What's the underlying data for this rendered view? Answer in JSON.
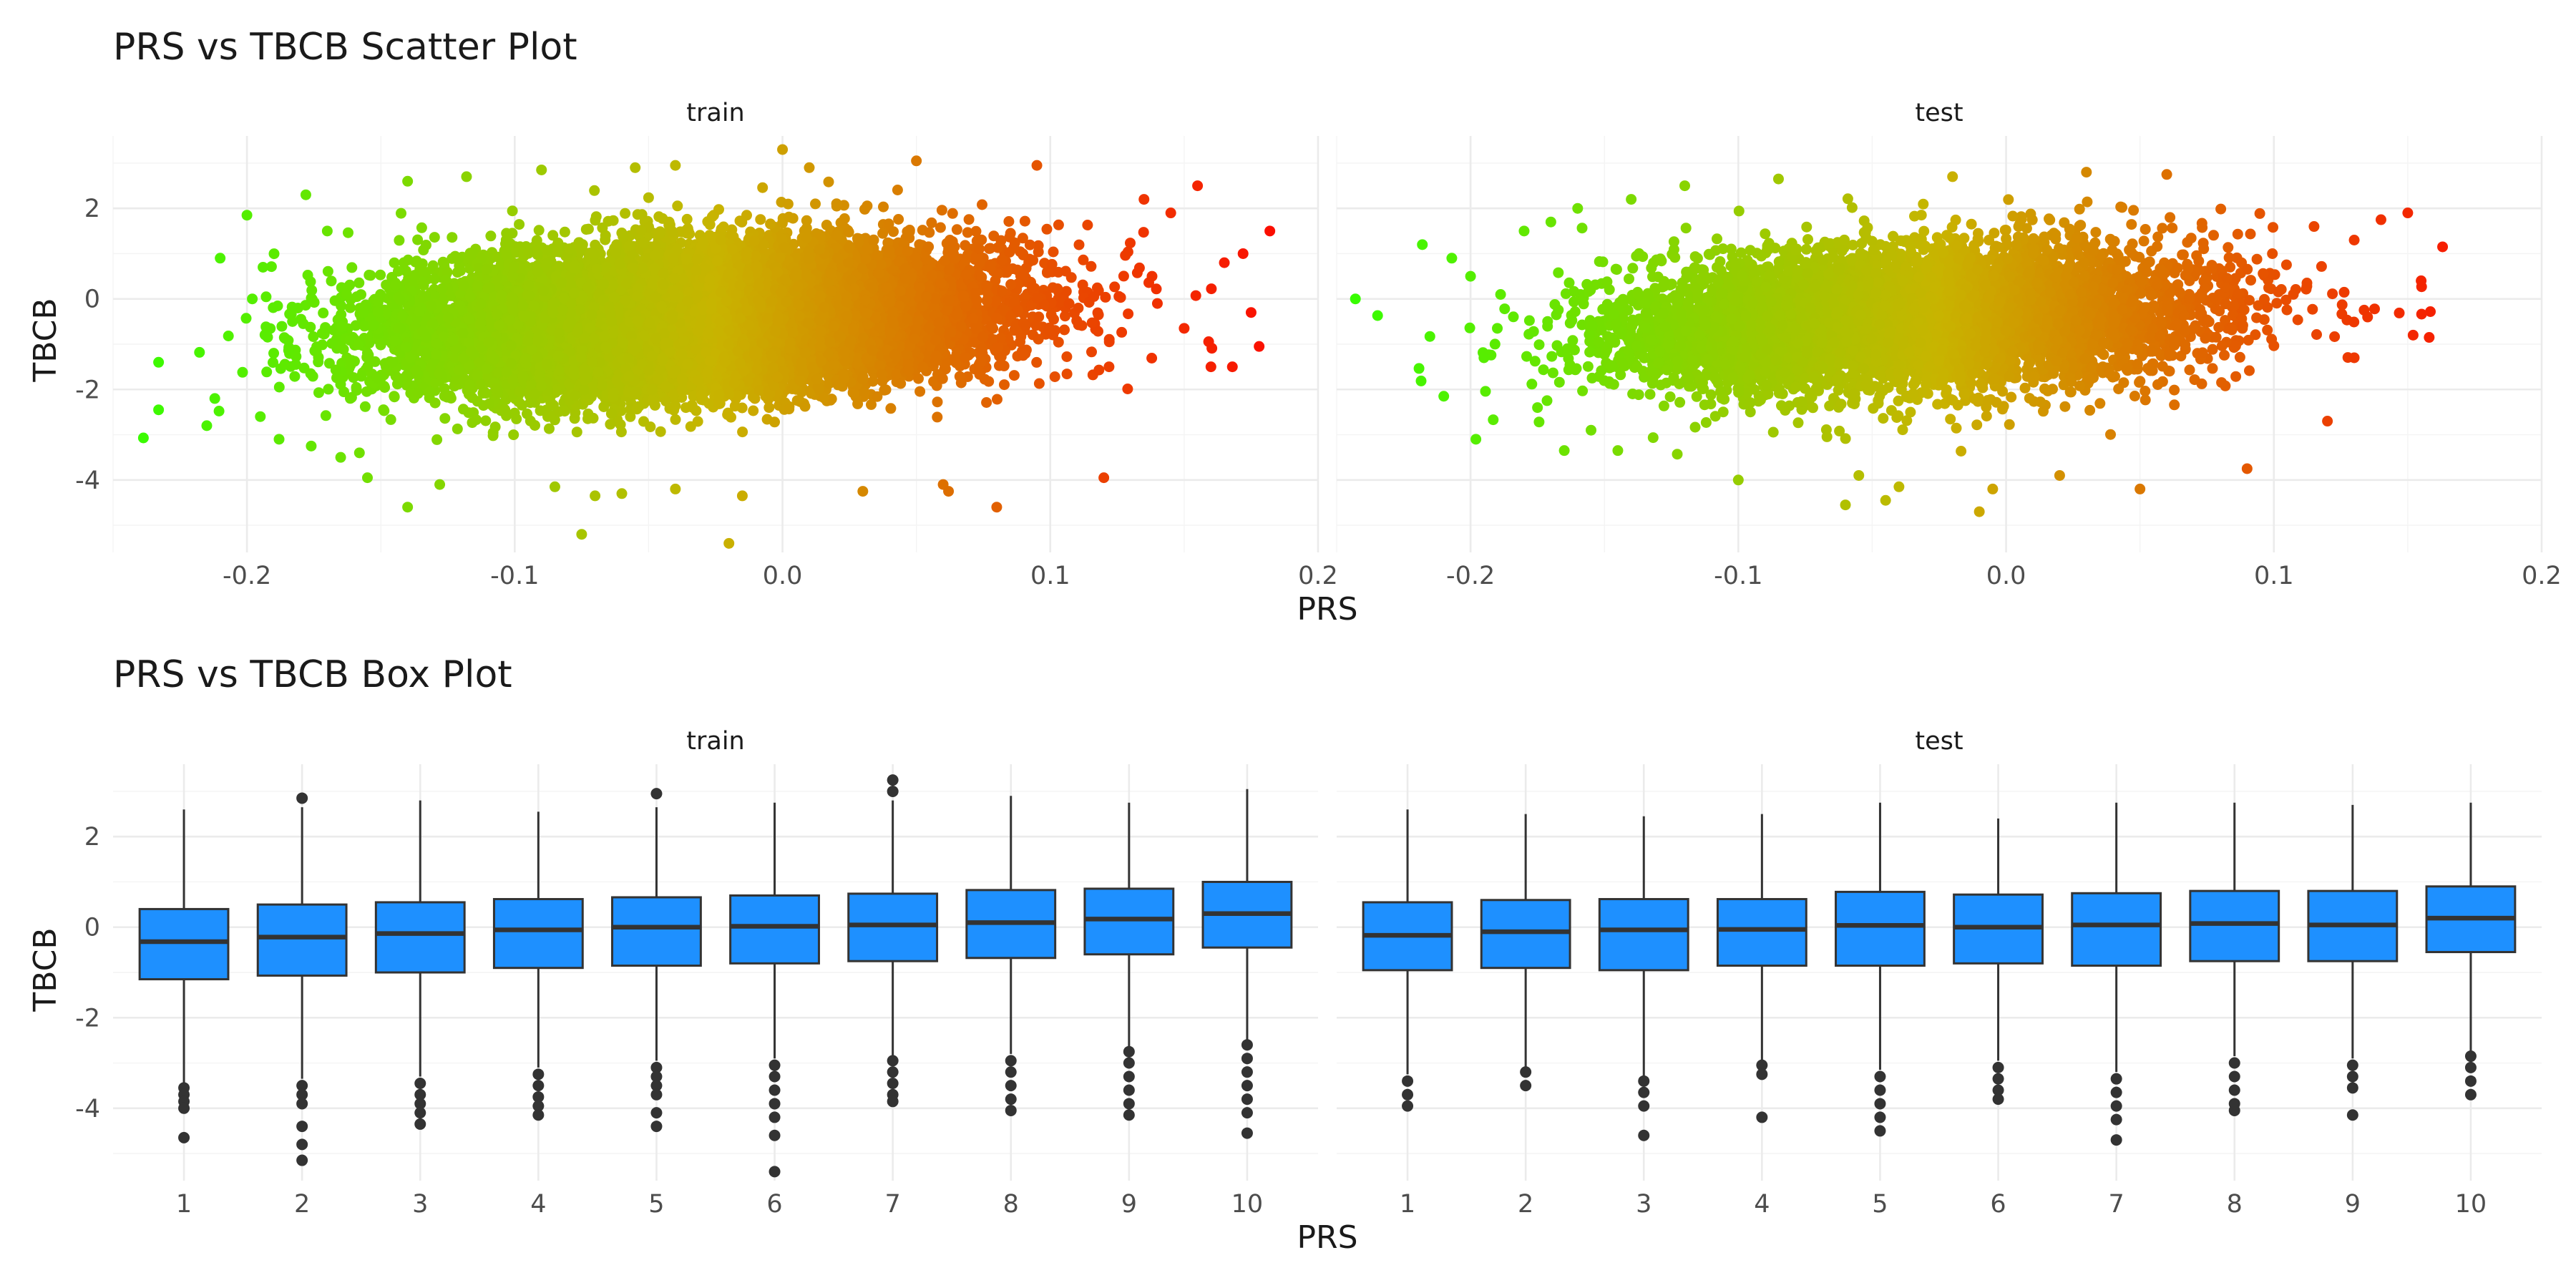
{
  "chart_data": [
    {
      "type": "scatter",
      "title": "PRS vs TBCB Scatter Plot",
      "xlabel": "PRS",
      "ylabel": "TBCB",
      "facets": [
        "train",
        "test"
      ],
      "xlim": [
        -0.25,
        0.2
      ],
      "ylim": [
        -5.6,
        3.6
      ],
      "x_ticks": [
        "-0.2",
        "-0.1",
        "0.0",
        "0.1",
        "0.2"
      ],
      "y_ticks": [
        "-4",
        "-2",
        "0",
        "2"
      ],
      "grid": true,
      "color_scale": {
        "low": "#33ff00",
        "mid": "#c8b400",
        "high": "#ff0000",
        "mapped_to": "PRS"
      },
      "train_points": [
        [
          -0.233,
          -1.4
        ],
        [
          -0.233,
          -2.45
        ],
        [
          -0.215,
          -2.8
        ],
        [
          -0.212,
          -2.2
        ],
        [
          -0.21,
          0.9
        ],
        [
          -0.2,
          1.85
        ],
        [
          -0.198,
          0.0
        ],
        [
          -0.195,
          -2.6
        ],
        [
          -0.194,
          0.7
        ],
        [
          -0.19,
          -1.2
        ],
        [
          -0.188,
          -3.1
        ],
        [
          -0.183,
          -0.5
        ],
        [
          -0.178,
          2.3
        ],
        [
          -0.176,
          -3.25
        ],
        [
          -0.17,
          1.5
        ],
        [
          -0.165,
          -3.5
        ],
        [
          -0.158,
          -3.4
        ],
        [
          -0.155,
          -3.95
        ],
        [
          -0.14,
          -4.6
        ],
        [
          -0.14,
          2.6
        ],
        [
          -0.128,
          -4.1
        ],
        [
          -0.118,
          2.7
        ],
        [
          -0.09,
          2.85
        ],
        [
          -0.085,
          -4.15
        ],
        [
          -0.075,
          -5.2
        ],
        [
          -0.07,
          -4.35
        ],
        [
          -0.06,
          -4.3
        ],
        [
          -0.055,
          2.9
        ],
        [
          -0.04,
          2.95
        ],
        [
          -0.04,
          -4.2
        ],
        [
          -0.02,
          -5.4
        ],
        [
          -0.015,
          -4.35
        ],
        [
          0.0,
          3.3
        ],
        [
          0.01,
          2.9
        ],
        [
          0.03,
          -4.25
        ],
        [
          0.05,
          3.05
        ],
        [
          0.06,
          -4.1
        ],
        [
          0.062,
          -4.25
        ],
        [
          0.08,
          -4.6
        ],
        [
          0.095,
          2.95
        ],
        [
          0.12,
          -3.95
        ],
        [
          0.135,
          2.2
        ],
        [
          0.145,
          1.9
        ],
        [
          0.155,
          2.5
        ],
        [
          0.16,
          -1.5
        ],
        [
          0.165,
          0.8
        ],
        [
          0.168,
          -1.5
        ],
        [
          0.172,
          1.0
        ],
        [
          0.175,
          -0.3
        ],
        [
          0.178,
          -1.05
        ],
        [
          0.182,
          1.5
        ],
        [
          0.15,
          -0.65
        ],
        [
          0.14,
          -0.1
        ],
        [
          0.138,
          0.5
        ]
      ],
      "test_points": [
        [
          -0.243,
          0.0
        ],
        [
          -0.218,
          1.2
        ],
        [
          -0.21,
          -2.15
        ],
        [
          -0.207,
          0.9
        ],
        [
          -0.2,
          0.5
        ],
        [
          -0.198,
          -3.1
        ],
        [
          -0.195,
          -1.3
        ],
        [
          -0.19,
          -0.65
        ],
        [
          -0.18,
          1.5
        ],
        [
          -0.175,
          -2.4
        ],
        [
          -0.17,
          1.7
        ],
        [
          -0.165,
          -3.35
        ],
        [
          -0.16,
          2.0
        ],
        [
          -0.155,
          -2.9
        ],
        [
          -0.145,
          -3.35
        ],
        [
          -0.14,
          2.2
        ],
        [
          -0.12,
          2.5
        ],
        [
          -0.1,
          -4.0
        ],
        [
          -0.085,
          2.65
        ],
        [
          -0.06,
          -4.55
        ],
        [
          -0.055,
          -3.9
        ],
        [
          -0.045,
          -4.45
        ],
        [
          -0.04,
          -4.15
        ],
        [
          -0.02,
          2.7
        ],
        [
          -0.01,
          -4.7
        ],
        [
          -0.005,
          -4.2
        ],
        [
          0.02,
          -3.9
        ],
        [
          0.03,
          2.8
        ],
        [
          0.05,
          -4.2
        ],
        [
          0.06,
          2.75
        ],
        [
          0.09,
          -3.75
        ],
        [
          0.115,
          1.6
        ],
        [
          0.13,
          1.3
        ],
        [
          0.14,
          1.75
        ],
        [
          0.15,
          1.9
        ],
        [
          0.152,
          -0.8
        ],
        [
          0.155,
          0.4
        ],
        [
          0.158,
          -0.85
        ],
        [
          0.163,
          1.15
        ],
        [
          0.13,
          -1.3
        ],
        [
          0.12,
          -2.7
        ],
        [
          0.135,
          -0.4
        ]
      ]
    },
    {
      "type": "box",
      "title": "PRS vs TBCB Box Plot",
      "xlabel": "PRS",
      "ylabel": "TBCB",
      "facets": [
        "train",
        "test"
      ],
      "categories": [
        "1",
        "2",
        "3",
        "4",
        "5",
        "6",
        "7",
        "8",
        "9",
        "10"
      ],
      "ylim": [
        -5.6,
        3.6
      ],
      "y_ticks": [
        "-4",
        "-2",
        "0",
        "2"
      ],
      "fill": "#1e90ff",
      "train_boxes": [
        {
          "q1": -1.15,
          "median": -0.32,
          "q3": 0.4,
          "whisker_low": -3.45,
          "whisker_high": 2.6,
          "outliers": [
            -3.55,
            -3.7,
            -3.85,
            -4.0,
            -4.65
          ]
        },
        {
          "q1": -1.07,
          "median": -0.22,
          "q3": 0.5,
          "whisker_low": -3.35,
          "whisker_high": 2.65,
          "outliers": [
            2.85,
            -3.5,
            -3.7,
            -3.9,
            -4.4,
            -4.8,
            -5.15
          ]
        },
        {
          "q1": -1.0,
          "median": -0.14,
          "q3": 0.55,
          "whisker_low": -3.3,
          "whisker_high": 2.8,
          "outliers": [
            -3.45,
            -3.7,
            -3.9,
            -4.1,
            -4.35
          ]
        },
        {
          "q1": -0.9,
          "median": -0.06,
          "q3": 0.62,
          "whisker_low": -3.1,
          "whisker_high": 2.55,
          "outliers": [
            -3.25,
            -3.5,
            -3.75,
            -3.95,
            -4.15
          ]
        },
        {
          "q1": -0.85,
          "median": 0.0,
          "q3": 0.66,
          "whisker_low": -2.95,
          "whisker_high": 2.65,
          "outliers": [
            2.95,
            -3.1,
            -3.3,
            -3.5,
            -3.7,
            -4.1,
            -4.4
          ]
        },
        {
          "q1": -0.8,
          "median": 0.02,
          "q3": 0.7,
          "whisker_low": -2.9,
          "whisker_high": 2.75,
          "outliers": [
            -3.05,
            -3.3,
            -3.6,
            -3.9,
            -4.2,
            -4.6,
            -5.4
          ]
        },
        {
          "q1": -0.75,
          "median": 0.05,
          "q3": 0.74,
          "whisker_low": -2.85,
          "whisker_high": 2.8,
          "outliers": [
            3.25,
            3.0,
            -2.95,
            -3.2,
            -3.45,
            -3.7,
            -3.85
          ]
        },
        {
          "q1": -0.68,
          "median": 0.1,
          "q3": 0.82,
          "whisker_low": -2.8,
          "whisker_high": 2.9,
          "outliers": [
            -2.95,
            -3.2,
            -3.5,
            -3.8,
            -4.05
          ]
        },
        {
          "q1": -0.6,
          "median": 0.18,
          "q3": 0.85,
          "whisker_low": -2.65,
          "whisker_high": 2.75,
          "outliers": [
            -2.75,
            -3.0,
            -3.3,
            -3.6,
            -3.9,
            -4.15
          ]
        },
        {
          "q1": -0.45,
          "median": 0.3,
          "q3": 1.0,
          "whisker_low": -2.5,
          "whisker_high": 3.05,
          "outliers": [
            -2.6,
            -2.9,
            -3.2,
            -3.5,
            -3.8,
            -4.1,
            -4.55
          ]
        }
      ],
      "test_boxes": [
        {
          "q1": -0.95,
          "median": -0.18,
          "q3": 0.55,
          "whisker_low": -3.25,
          "whisker_high": 2.6,
          "outliers": [
            -3.4,
            -3.7,
            -3.95
          ]
        },
        {
          "q1": -0.9,
          "median": -0.1,
          "q3": 0.6,
          "whisker_low": -3.1,
          "whisker_high": 2.5,
          "outliers": [
            -3.2,
            -3.5
          ]
        },
        {
          "q1": -0.95,
          "median": -0.06,
          "q3": 0.62,
          "whisker_low": -3.3,
          "whisker_high": 2.45,
          "outliers": [
            -3.4,
            -3.65,
            -3.95,
            -4.6
          ]
        },
        {
          "q1": -0.85,
          "median": -0.05,
          "q3": 0.62,
          "whisker_low": -2.95,
          "whisker_high": 2.5,
          "outliers": [
            -3.05,
            -3.25,
            -4.2
          ]
        },
        {
          "q1": -0.85,
          "median": 0.04,
          "q3": 0.78,
          "whisker_low": -3.15,
          "whisker_high": 2.75,
          "outliers": [
            -3.3,
            -3.6,
            -3.9,
            -4.2,
            -4.5
          ]
        },
        {
          "q1": -0.8,
          "median": 0.0,
          "q3": 0.72,
          "whisker_low": -2.95,
          "whisker_high": 2.4,
          "outliers": [
            -3.1,
            -3.35,
            -3.6,
            -3.8
          ]
        },
        {
          "q1": -0.85,
          "median": 0.05,
          "q3": 0.75,
          "whisker_low": -3.2,
          "whisker_high": 2.75,
          "outliers": [
            -3.35,
            -3.65,
            -3.95,
            -4.25,
            -4.7
          ]
        },
        {
          "q1": -0.75,
          "median": 0.08,
          "q3": 0.8,
          "whisker_low": -2.85,
          "whisker_high": 2.75,
          "outliers": [
            -3.0,
            -3.3,
            -3.6,
            -3.9,
            -4.05
          ]
        },
        {
          "q1": -0.75,
          "median": 0.05,
          "q3": 0.8,
          "whisker_low": -2.9,
          "whisker_high": 2.7,
          "outliers": [
            -3.05,
            -3.3,
            -3.55,
            -4.15
          ]
        },
        {
          "q1": -0.55,
          "median": 0.2,
          "q3": 0.9,
          "whisker_low": -2.75,
          "whisker_high": 2.75,
          "outliers": [
            -2.85,
            -3.1,
            -3.4,
            -3.7
          ]
        }
      ]
    }
  ]
}
